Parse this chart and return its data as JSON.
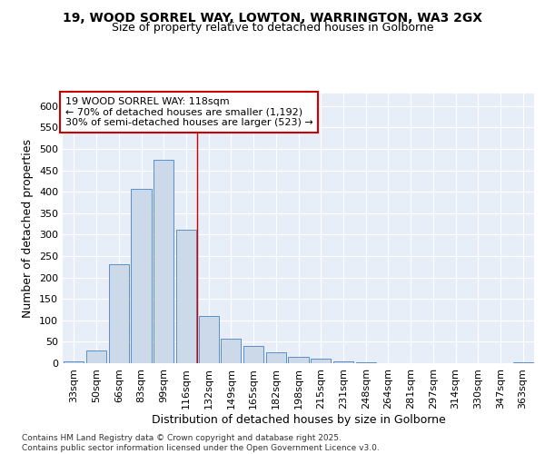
{
  "title_line1": "19, WOOD SORREL WAY, LOWTON, WARRINGTON, WA3 2GX",
  "title_line2": "Size of property relative to detached houses in Golborne",
  "xlabel": "Distribution of detached houses by size in Golborne",
  "ylabel": "Number of detached properties",
  "bar_labels": [
    "33sqm",
    "50sqm",
    "66sqm",
    "83sqm",
    "99sqm",
    "116sqm",
    "132sqm",
    "149sqm",
    "165sqm",
    "182sqm",
    "198sqm",
    "215sqm",
    "231sqm",
    "248sqm",
    "264sqm",
    "281sqm",
    "297sqm",
    "314sqm",
    "330sqm",
    "347sqm",
    "363sqm"
  ],
  "bar_values": [
    5,
    30,
    230,
    406,
    475,
    312,
    110,
    57,
    40,
    25,
    14,
    10,
    5,
    3,
    1,
    1,
    1,
    1,
    1,
    1,
    2
  ],
  "bar_color": "#ccd9e8",
  "bar_edge_color": "#5b8fc9",
  "vline_x": 5.5,
  "vline_color": "#cc0000",
  "annotation_text": "19 WOOD SORREL WAY: 118sqm\n← 70% of detached houses are smaller (1,192)\n30% of semi-detached houses are larger (523) →",
  "annotation_box_color": "white",
  "annotation_box_edge_color": "#cc0000",
  "ylim": [
    0,
    630
  ],
  "yticks": [
    0,
    50,
    100,
    150,
    200,
    250,
    300,
    350,
    400,
    450,
    500,
    550,
    600
  ],
  "background_color": "#e8eef8",
  "grid_color": "white",
  "footer_text": "Contains HM Land Registry data © Crown copyright and database right 2025.\nContains public sector information licensed under the Open Government Licence v3.0.",
  "title_fontsize": 10,
  "subtitle_fontsize": 9,
  "axis_label_fontsize": 9,
  "tick_fontsize": 8,
  "annotation_fontsize": 8,
  "footer_fontsize": 6.5
}
